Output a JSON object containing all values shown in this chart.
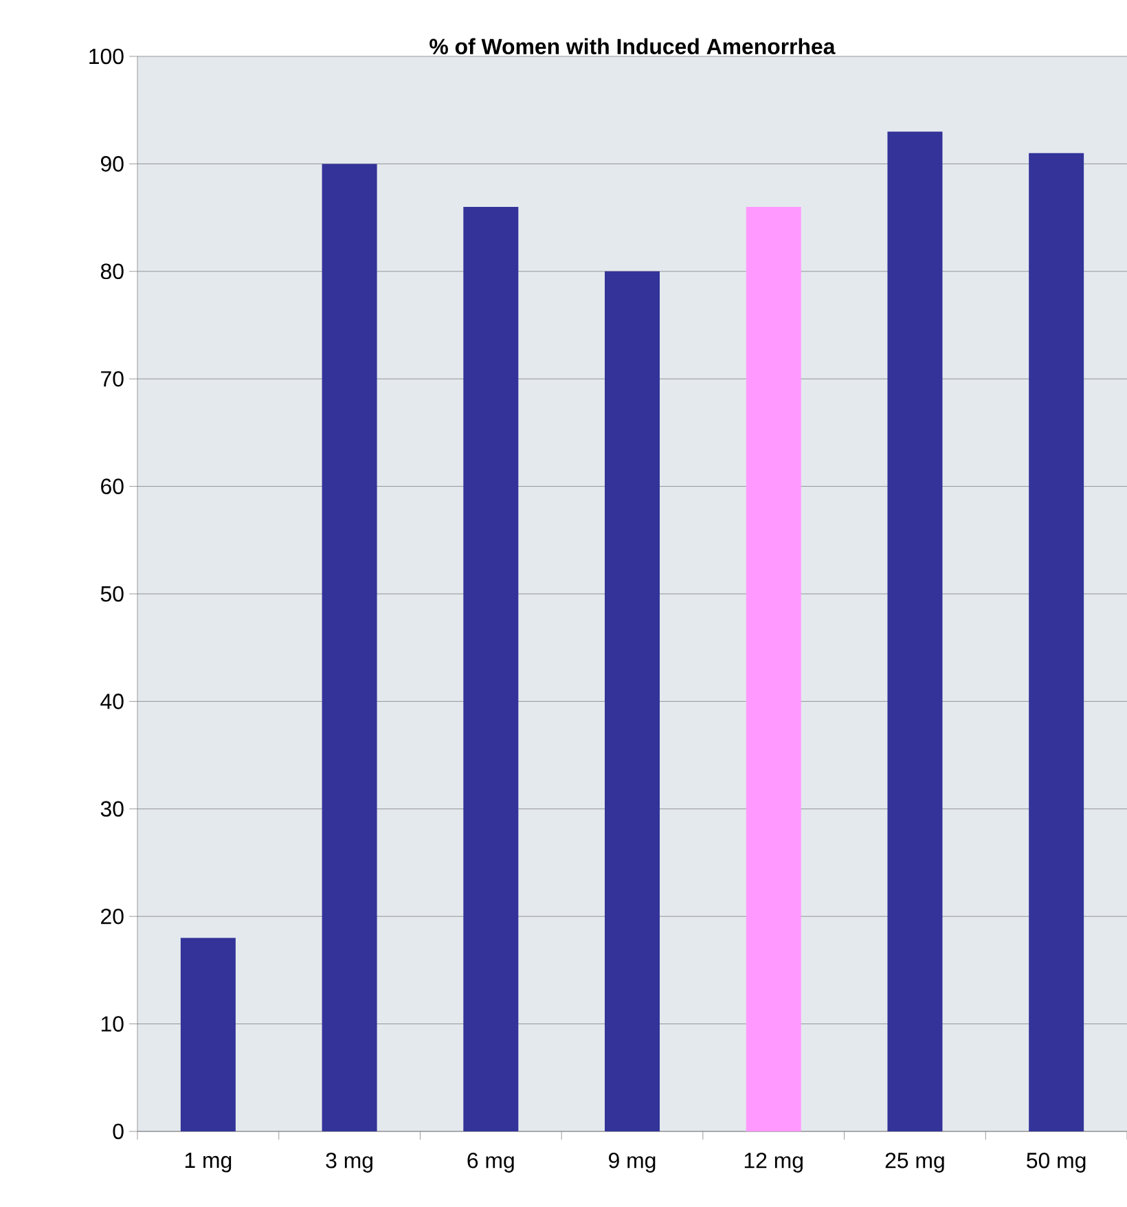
{
  "chart_data": {
    "type": "bar",
    "title": "**% of Women with Induced Amenorrhea**",
    "categories": [
      "1 mg",
      "3 mg",
      "6 mg",
      "9 mg",
      "12 mg",
      "25 mg",
      "50 mg"
    ],
    "values": [
      18,
      90,
      86,
      80,
      86,
      93,
      91
    ],
    "colors": [
      "#333399",
      "#333399",
      "#333399",
      "#333399",
      "#ff99ff",
      "#333399",
      "#333399"
    ],
    "ylim": [
      0,
      100
    ],
    "yticks": [
      0,
      10,
      20,
      30,
      40,
      50,
      60,
      70,
      80,
      90,
      100
    ],
    "grid": "y"
  }
}
